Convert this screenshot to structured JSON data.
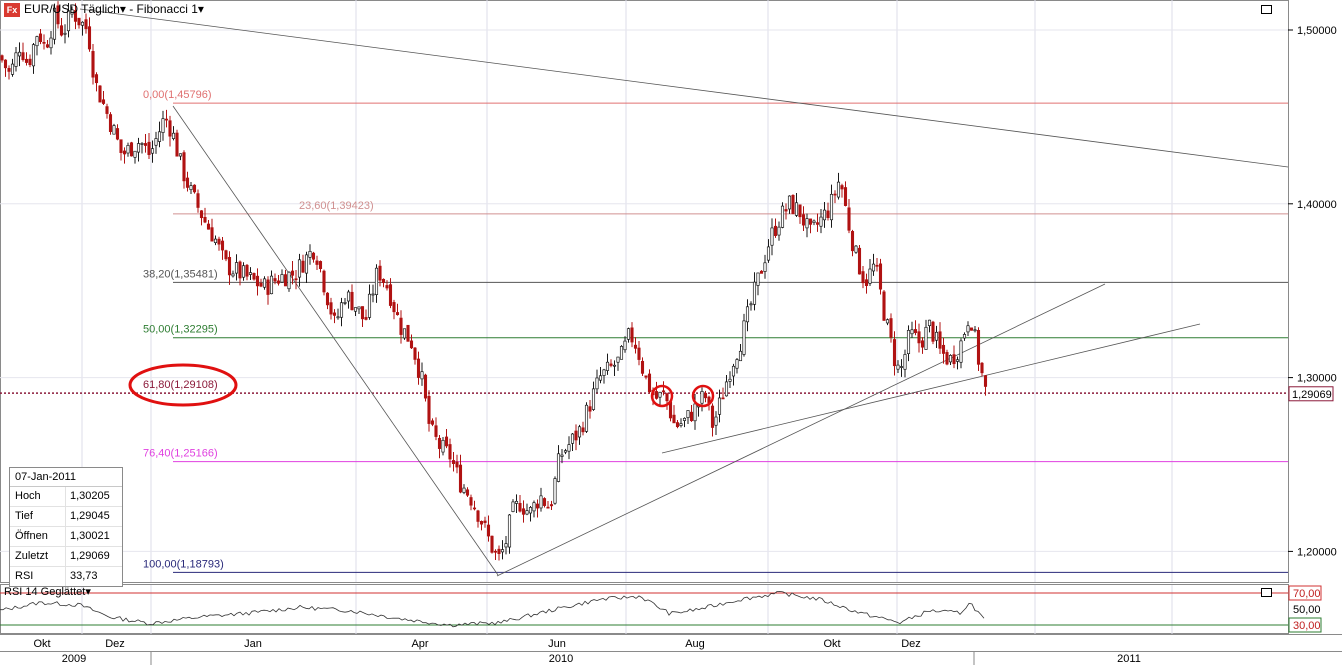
{
  "header": {
    "logo_text": "Fx",
    "symbol": "EUR/USD",
    "period": "Täglich",
    "study": "Fibonacci 1"
  },
  "info_box": {
    "date": "07-Jan-2011",
    "rows": [
      {
        "label": "Hoch",
        "value": "1,30205"
      },
      {
        "label": "Tief",
        "value": "1,29045"
      },
      {
        "label": "Öffnen",
        "value": "1,30021"
      },
      {
        "label": "Zuletzt",
        "value": "1,29069"
      },
      {
        "label": "RSI",
        "value": "33,73"
      }
    ]
  },
  "rsi_panel": {
    "label": "RSI 14 Geglättet",
    "levels": [
      "70,00",
      "50,00",
      "30,00"
    ]
  },
  "colors": {
    "candle_up": "#1a1a1a",
    "candle_down": "#b01212",
    "fib_0": "#e07070",
    "fib_23": "#d09090",
    "fib_38": "#555555",
    "fib_50": "#2e7d32",
    "fib_61": "#8b1a3a",
    "fib_76": "#e040e0",
    "fib_100": "#2a2a7a",
    "highlight": "#e01010",
    "rsi_line": "#333333"
  },
  "chart_data": {
    "type": "candlestick",
    "title": "EUR/USD Täglich",
    "ylim": [
      1.185,
      1.515
    ],
    "y_ticks": [
      "1,50000",
      "1,40000",
      "1,30000",
      "1,20000"
    ],
    "last_price": "1,29069",
    "x_months": [
      "Okt",
      "Dez",
      "Jan",
      "Apr",
      "Jun",
      "Aug",
      "Okt",
      "Dez"
    ],
    "x_years": [
      "2009",
      "2010",
      "2011"
    ],
    "fibonacci": [
      {
        "label": "0,00(1,45796)",
        "price": 1.45796
      },
      {
        "label": "23,60(1,39423)",
        "price": 1.39423
      },
      {
        "label": "38,20(1,35481)",
        "price": 1.35481
      },
      {
        "label": "50,00(1,32295)",
        "price": 1.32295
      },
      {
        "label": "61,80(1,29108)",
        "price": 1.29108
      },
      {
        "label": "76,40(1,25166)",
        "price": 1.25166
      },
      {
        "label": "100,00(1,18793)",
        "price": 1.18793
      }
    ],
    "close_path": [
      {
        "t": 0,
        "v": 1.485
      },
      {
        "t": 10,
        "v": 1.474
      },
      {
        "t": 20,
        "v": 1.492
      },
      {
        "t": 28,
        "v": 1.48
      },
      {
        "t": 38,
        "v": 1.5
      },
      {
        "t": 45,
        "v": 1.49
      },
      {
        "t": 55,
        "v": 1.508
      },
      {
        "t": 63,
        "v": 1.498
      },
      {
        "t": 72,
        "v": 1.511
      },
      {
        "t": 80,
        "v": 1.505
      },
      {
        "t": 88,
        "v": 1.5
      },
      {
        "t": 95,
        "v": 1.47
      },
      {
        "t": 105,
        "v": 1.455
      },
      {
        "t": 115,
        "v": 1.44
      },
      {
        "t": 122,
        "v": 1.428
      },
      {
        "t": 130,
        "v": 1.432
      },
      {
        "t": 140,
        "v": 1.436
      },
      {
        "t": 150,
        "v": 1.428
      },
      {
        "t": 158,
        "v": 1.44
      },
      {
        "t": 165,
        "v": 1.45
      },
      {
        "t": 172,
        "v": 1.442
      },
      {
        "t": 182,
        "v": 1.42
      },
      {
        "t": 192,
        "v": 1.405
      },
      {
        "t": 205,
        "v": 1.39
      },
      {
        "t": 215,
        "v": 1.38
      },
      {
        "t": 225,
        "v": 1.365
      },
      {
        "t": 240,
        "v": 1.36
      },
      {
        "t": 255,
        "v": 1.355
      },
      {
        "t": 265,
        "v": 1.352
      },
      {
        "t": 280,
        "v": 1.358
      },
      {
        "t": 295,
        "v": 1.36
      },
      {
        "t": 305,
        "v": 1.368
      },
      {
        "t": 315,
        "v": 1.375
      },
      {
        "t": 325,
        "v": 1.352
      },
      {
        "t": 335,
        "v": 1.33
      },
      {
        "t": 345,
        "v": 1.348
      },
      {
        "t": 355,
        "v": 1.342
      },
      {
        "t": 365,
        "v": 1.332
      },
      {
        "t": 378,
        "v": 1.362
      },
      {
        "t": 388,
        "v": 1.352
      },
      {
        "t": 400,
        "v": 1.33
      },
      {
        "t": 412,
        "v": 1.32
      },
      {
        "t": 422,
        "v": 1.298
      },
      {
        "t": 430,
        "v": 1.27
      },
      {
        "t": 440,
        "v": 1.26
      },
      {
        "t": 450,
        "v": 1.255
      },
      {
        "t": 460,
        "v": 1.24
      },
      {
        "t": 470,
        "v": 1.232
      },
      {
        "t": 480,
        "v": 1.22
      },
      {
        "t": 490,
        "v": 1.205
      },
      {
        "t": 498,
        "v": 1.195
      },
      {
        "t": 505,
        "v": 1.203
      },
      {
        "t": 512,
        "v": 1.222
      },
      {
        "t": 520,
        "v": 1.228
      },
      {
        "t": 530,
        "v": 1.222
      },
      {
        "t": 540,
        "v": 1.232
      },
      {
        "t": 550,
        "v": 1.225
      },
      {
        "t": 560,
        "v": 1.255
      },
      {
        "t": 570,
        "v": 1.262
      },
      {
        "t": 580,
        "v": 1.27
      },
      {
        "t": 590,
        "v": 1.285
      },
      {
        "t": 600,
        "v": 1.3
      },
      {
        "t": 610,
        "v": 1.305
      },
      {
        "t": 620,
        "v": 1.31
      },
      {
        "t": 630,
        "v": 1.325
      },
      {
        "t": 637,
        "v": 1.318
      },
      {
        "t": 645,
        "v": 1.3
      },
      {
        "t": 655,
        "v": 1.288
      },
      {
        "t": 665,
        "v": 1.29
      },
      {
        "t": 675,
        "v": 1.272
      },
      {
        "t": 685,
        "v": 1.275
      },
      {
        "t": 695,
        "v": 1.282
      },
      {
        "t": 705,
        "v": 1.29
      },
      {
        "t": 713,
        "v": 1.272
      },
      {
        "t": 720,
        "v": 1.285
      },
      {
        "t": 730,
        "v": 1.305
      },
      {
        "t": 740,
        "v": 1.32
      },
      {
        "t": 750,
        "v": 1.34
      },
      {
        "t": 760,
        "v": 1.36
      },
      {
        "t": 770,
        "v": 1.38
      },
      {
        "t": 780,
        "v": 1.392
      },
      {
        "t": 790,
        "v": 1.4
      },
      {
        "t": 800,
        "v": 1.395
      },
      {
        "t": 810,
        "v": 1.382
      },
      {
        "t": 820,
        "v": 1.39
      },
      {
        "t": 830,
        "v": 1.398
      },
      {
        "t": 840,
        "v": 1.415
      },
      {
        "t": 848,
        "v": 1.39
      },
      {
        "t": 856,
        "v": 1.37
      },
      {
        "t": 865,
        "v": 1.355
      },
      {
        "t": 875,
        "v": 1.365
      },
      {
        "t": 885,
        "v": 1.335
      },
      {
        "t": 895,
        "v": 1.31
      },
      {
        "t": 900,
        "v": 1.302
      },
      {
        "t": 910,
        "v": 1.325
      },
      {
        "t": 920,
        "v": 1.32
      },
      {
        "t": 930,
        "v": 1.33
      },
      {
        "t": 940,
        "v": 1.315
      },
      {
        "t": 950,
        "v": 1.31
      },
      {
        "t": 960,
        "v": 1.318
      },
      {
        "t": 970,
        "v": 1.338
      },
      {
        "t": 978,
        "v": 1.312
      },
      {
        "t": 986,
        "v": 1.291
      }
    ],
    "rsi_path": [
      {
        "t": 0,
        "v": 48
      },
      {
        "t": 40,
        "v": 58
      },
      {
        "t": 80,
        "v": 55
      },
      {
        "t": 110,
        "v": 40
      },
      {
        "t": 150,
        "v": 32
      },
      {
        "t": 200,
        "v": 40
      },
      {
        "t": 250,
        "v": 45
      },
      {
        "t": 300,
        "v": 52
      },
      {
        "t": 350,
        "v": 48
      },
      {
        "t": 400,
        "v": 38
      },
      {
        "t": 450,
        "v": 30
      },
      {
        "t": 500,
        "v": 33
      },
      {
        "t": 550,
        "v": 48
      },
      {
        "t": 600,
        "v": 62
      },
      {
        "t": 640,
        "v": 66
      },
      {
        "t": 670,
        "v": 44
      },
      {
        "t": 700,
        "v": 50
      },
      {
        "t": 740,
        "v": 62
      },
      {
        "t": 780,
        "v": 70
      },
      {
        "t": 820,
        "v": 62
      },
      {
        "t": 860,
        "v": 45
      },
      {
        "t": 900,
        "v": 33
      },
      {
        "t": 930,
        "v": 48
      },
      {
        "t": 960,
        "v": 45
      },
      {
        "t": 970,
        "v": 58
      },
      {
        "t": 986,
        "v": 34
      }
    ]
  }
}
